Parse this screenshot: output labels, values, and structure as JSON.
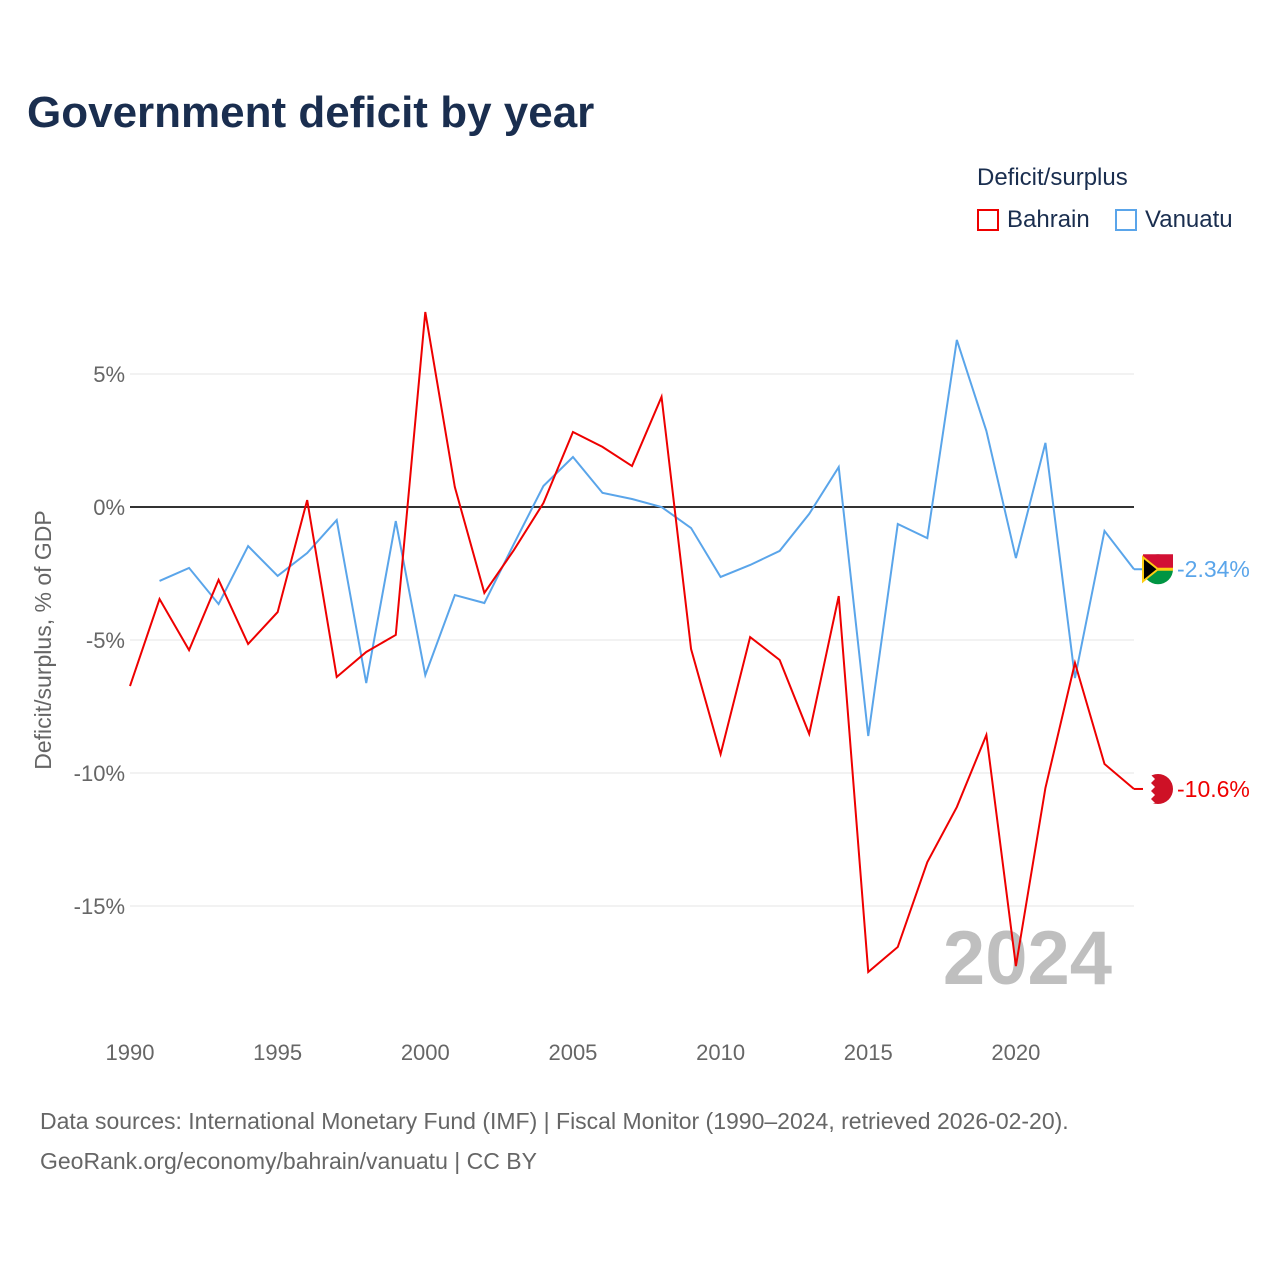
{
  "title": "Government deficit by year",
  "legend": {
    "title": "Deficit/surplus",
    "items": [
      {
        "name": "Bahrain",
        "color": "#ee0000"
      },
      {
        "name": "Vanuatu",
        "color": "#5aa5ea"
      }
    ]
  },
  "footer": {
    "line1": "Data sources: International Monetary Fund (IMF) | Fiscal Monitor (1990–2024, retrieved 2026-02-20).",
    "line2": "GeoRank.org/economy/bahrain/vanuatu | CC BY"
  },
  "chart_data": {
    "type": "line",
    "ylabel": "Deficit/surplus, % of GDP",
    "xlim": [
      1990,
      2024
    ],
    "ylim": [
      -19,
      8.5
    ],
    "xticks": [
      1990,
      1995,
      2000,
      2005,
      2010,
      2015,
      2020
    ],
    "yticks": [
      {
        "v": 5,
        "label": "5%"
      },
      {
        "v": 0,
        "label": "0%"
      },
      {
        "v": -5,
        "label": "-5%"
      },
      {
        "v": -10,
        "label": "-10%"
      },
      {
        "v": -15,
        "label": "-15%"
      }
    ],
    "year_watermark": "2024",
    "series": [
      {
        "name": "Bahrain",
        "color": "#ee0000",
        "end_label": "-10.6%",
        "start": 1990,
        "values": [
          -6.73,
          -3.46,
          -5.38,
          -2.74,
          -5.15,
          -3.95,
          0.26,
          -6.39,
          -5.45,
          -4.81,
          7.33,
          0.75,
          -3.23,
          -1.62,
          0.15,
          2.82,
          2.26,
          1.54,
          4.14,
          -5.34,
          -9.29,
          -4.89,
          -5.75,
          -8.53,
          -3.35,
          -17.48,
          -16.54,
          -13.35,
          -11.28,
          -8.57,
          -17.26,
          -10.56,
          -5.86,
          -9.66,
          -10.6
        ]
      },
      {
        "name": "Vanuatu",
        "color": "#5aa5ea",
        "end_label": "-2.34%",
        "start": 1991,
        "values": [
          -2.78,
          -2.29,
          -3.65,
          -1.47,
          -2.59,
          -1.73,
          -0.49,
          -6.62,
          -0.53,
          -6.32,
          -3.31,
          -3.61,
          -1.39,
          0.79,
          1.88,
          0.53,
          0.3,
          0,
          -0.79,
          -2.63,
          -2.18,
          -1.65,
          -0.26,
          1.5,
          -8.61,
          -0.64,
          -1.17,
          6.28,
          2.86,
          -1.92,
          2.41,
          -6.43,
          -0.9,
          -2.34
        ]
      }
    ]
  }
}
